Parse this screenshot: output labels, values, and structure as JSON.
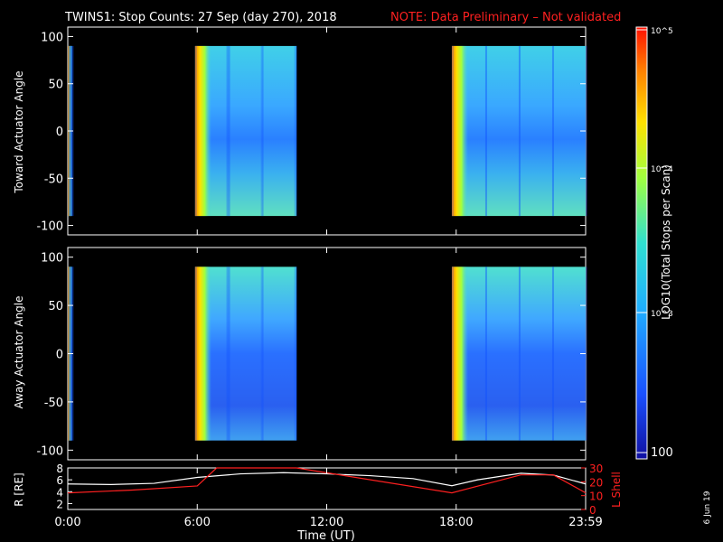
{
  "title": {
    "main": "TWINS1: Stop Counts: 27 Sep (day 270), 2018",
    "note": "NOTE: Data Preliminary – Not validated"
  },
  "colors": {
    "background": "#000000",
    "axis": "#ffffff",
    "note": "#ff2020",
    "lshell": "#ff2020",
    "r_line": "#ffffff"
  },
  "date_stamp": "6 Jun 19",
  "colorbar": {
    "label": "LOG10(Total Stops per Scan)",
    "ticks": [
      "10^5",
      "10^4",
      "10^3",
      "100"
    ]
  },
  "chart_data": [
    {
      "type": "heatmap",
      "name": "toward",
      "ylabel": "Toward Actuator Angle",
      "ylim": [
        -110,
        110
      ],
      "yticks": [
        100,
        50,
        0,
        -50,
        -100
      ],
      "xlim": [
        0,
        24
      ],
      "coverage_hours": [
        [
          0,
          0.2
        ],
        [
          5.9,
          10.6
        ],
        [
          17.8,
          24
        ]
      ],
      "colorscale": "log",
      "zlim": [
        100,
        100000
      ]
    },
    {
      "type": "heatmap",
      "name": "away",
      "ylabel": "Away Actuator Angle",
      "ylim": [
        -110,
        110
      ],
      "yticks": [
        100,
        50,
        0,
        -50,
        -100
      ],
      "xlim": [
        0,
        24
      ],
      "coverage_hours": [
        [
          0,
          0.2
        ],
        [
          5.9,
          10.6
        ],
        [
          17.8,
          24
        ]
      ],
      "colorscale": "log",
      "zlim": [
        100,
        100000
      ]
    },
    {
      "type": "line",
      "name": "orbit",
      "ylabel_left": "R [RE]",
      "ylabel_right": "L Shell",
      "ylim_left": [
        1,
        8
      ],
      "ylim_right": [
        0,
        30
      ],
      "yticks_left": [
        8,
        6,
        4,
        2
      ],
      "yticks_right": [
        30,
        20,
        10,
        0
      ],
      "xlabel": "Time (UT)",
      "xticks": [
        "0:00",
        "6:00",
        "12:00",
        "18:00",
        "23:59"
      ],
      "xtick_hours": [
        0,
        6,
        12,
        18,
        24
      ],
      "series": [
        {
          "name": "R",
          "x": [
            0,
            2,
            4,
            6,
            8,
            10,
            12,
            14,
            16,
            17.8,
            19,
            21,
            22.5,
            24
          ],
          "y": [
            5.3,
            5.2,
            5.4,
            6.4,
            7.0,
            7.2,
            7.0,
            6.7,
            6.2,
            5.0,
            6.0,
            7.1,
            6.8,
            5.3
          ]
        },
        {
          "name": "L Shell",
          "x": [
            0,
            3,
            6,
            6.9,
            10.6,
            17.8,
            21,
            22.5,
            24
          ],
          "y": [
            12,
            14,
            17,
            30,
            30,
            12,
            25,
            25,
            12
          ]
        }
      ]
    }
  ]
}
